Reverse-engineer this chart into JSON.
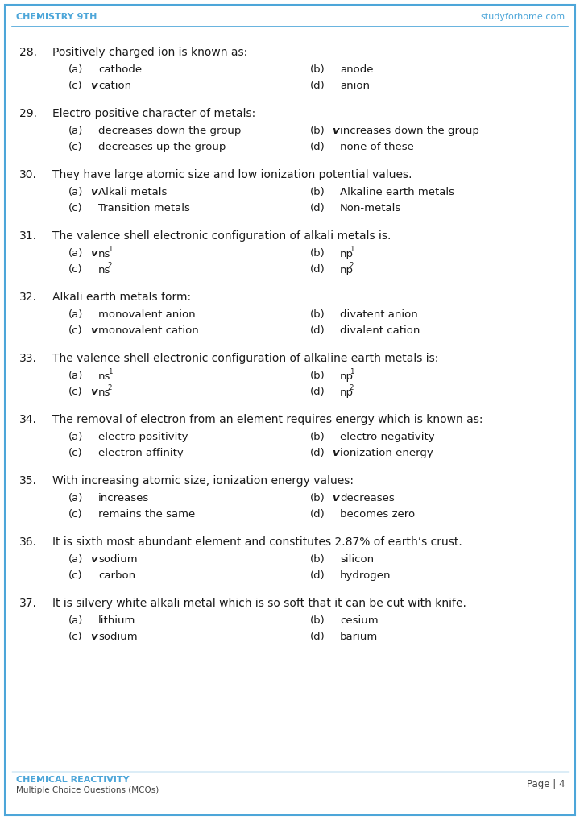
{
  "header_left": "CHEMISTRY 9TH",
  "header_right": "studyforhome.com",
  "header_color": "#4da6d9",
  "footer_left_line1": "CHEMICAL REACTIVITY",
  "footer_left_line2": "Multiple Choice Questions (MCQs)",
  "footer_right": "Page | 4",
  "footer_color": "#4da6d9",
  "bg_color": "#ffffff",
  "border_color": "#4da6d9",
  "watermark_text": "studyforhome.com",
  "questions": [
    {
      "num": "28.",
      "question": "Positively charged ion is known as:",
      "options": [
        {
          "label": "(a)",
          "check": false,
          "text": "cathode",
          "sup": null,
          "col": 0
        },
        {
          "label": "(b)",
          "check": false,
          "text": "anode",
          "sup": null,
          "col": 1
        },
        {
          "label": "(c)",
          "check": true,
          "text": "cation",
          "sup": null,
          "col": 0
        },
        {
          "label": "(d)",
          "check": false,
          "text": "anion",
          "sup": null,
          "col": 1
        }
      ]
    },
    {
      "num": "29.",
      "question": "Electro positive character of metals:",
      "options": [
        {
          "label": "(a)",
          "check": false,
          "text": "decreases down the group",
          "sup": null,
          "col": 0
        },
        {
          "label": "(b)",
          "check": true,
          "text": "increases down the group",
          "sup": null,
          "col": 1
        },
        {
          "label": "(c)",
          "check": false,
          "text": "decreases up the group",
          "sup": null,
          "col": 0
        },
        {
          "label": "(d)",
          "check": false,
          "text": "none of these",
          "sup": null,
          "col": 1
        }
      ]
    },
    {
      "num": "30.",
      "question": "They have large atomic size and low ionization potential values.",
      "options": [
        {
          "label": "(a)",
          "check": true,
          "text": "Alkali metals",
          "sup": null,
          "col": 0
        },
        {
          "label": "(b)",
          "check": false,
          "text": "Alkaline earth metals",
          "sup": null,
          "col": 1
        },
        {
          "label": "(c)",
          "check": false,
          "text": "Transition metals",
          "sup": null,
          "col": 0
        },
        {
          "label": "(d)",
          "check": false,
          "text": "Non-metals",
          "sup": null,
          "col": 1
        }
      ]
    },
    {
      "num": "31.",
      "question": "The valence shell electronic configuration of alkali metals is.",
      "options": [
        {
          "label": "(a)",
          "check": true,
          "text": "ns",
          "sup": "1",
          "col": 0
        },
        {
          "label": "(b)",
          "check": false,
          "text": "np",
          "sup": "1",
          "col": 1
        },
        {
          "label": "(c)",
          "check": false,
          "text": "ns",
          "sup": "2",
          "col": 0
        },
        {
          "label": "(d)",
          "check": false,
          "text": "np",
          "sup": "2",
          "col": 1
        }
      ]
    },
    {
      "num": "32.",
      "question": "Alkali earth metals form:",
      "options": [
        {
          "label": "(a)",
          "check": false,
          "text": "monovalent anion",
          "sup": null,
          "col": 0
        },
        {
          "label": "(b)",
          "check": false,
          "text": "divatent anion",
          "sup": null,
          "col": 1
        },
        {
          "label": "(c)",
          "check": true,
          "text": "monovalent cation",
          "sup": null,
          "col": 0
        },
        {
          "label": "(d)",
          "check": false,
          "text": "divalent cation",
          "sup": null,
          "col": 1
        }
      ]
    },
    {
      "num": "33.",
      "question": "The valence shell electronic configuration of alkaline earth metals is:",
      "options": [
        {
          "label": "(a)",
          "check": false,
          "text": "ns",
          "sup": "1",
          "col": 0
        },
        {
          "label": "(b)",
          "check": false,
          "text": "np",
          "sup": "1",
          "col": 1
        },
        {
          "label": "(c)",
          "check": true,
          "text": "ns",
          "sup": "2",
          "col": 0
        },
        {
          "label": "(d)",
          "check": false,
          "text": "np",
          "sup": "2",
          "col": 1
        }
      ]
    },
    {
      "num": "34.",
      "question": "The removal of electron from an element requires energy which is known as:",
      "options": [
        {
          "label": "(a)",
          "check": false,
          "text": "electro positivity",
          "sup": null,
          "col": 0
        },
        {
          "label": "(b)",
          "check": false,
          "text": "electro negativity",
          "sup": null,
          "col": 1
        },
        {
          "label": "(c)",
          "check": false,
          "text": "electron affinity",
          "sup": null,
          "col": 0
        },
        {
          "label": "(d)",
          "check": true,
          "text": "ionization energy",
          "sup": null,
          "col": 1
        }
      ]
    },
    {
      "num": "35.",
      "question": "With increasing atomic size, ionization energy values:",
      "options": [
        {
          "label": "(a)",
          "check": false,
          "text": "increases",
          "sup": null,
          "col": 0
        },
        {
          "label": "(b)",
          "check": true,
          "text": "decreases",
          "sup": null,
          "col": 1
        },
        {
          "label": "(c)",
          "check": false,
          "text": "remains the same",
          "sup": null,
          "col": 0
        },
        {
          "label": "(d)",
          "check": false,
          "text": "becomes zero",
          "sup": null,
          "col": 1
        }
      ]
    },
    {
      "num": "36.",
      "question": "It is sixth most abundant element and constitutes 2.87% of earth’s crust.",
      "options": [
        {
          "label": "(a)",
          "check": true,
          "text": "sodium",
          "sup": null,
          "col": 0
        },
        {
          "label": "(b)",
          "check": false,
          "text": "silicon",
          "sup": null,
          "col": 1
        },
        {
          "label": "(c)",
          "check": false,
          "text": "carbon",
          "sup": null,
          "col": 0
        },
        {
          "label": "(d)",
          "check": false,
          "text": "hydrogen",
          "sup": null,
          "col": 1
        }
      ]
    },
    {
      "num": "37.",
      "question": "It is silvery white alkali metal which is so soft that it can be cut with knife.",
      "options": [
        {
          "label": "(a)",
          "check": false,
          "text": "lithium",
          "sup": null,
          "col": 0
        },
        {
          "label": "(b)",
          "check": false,
          "text": "cesium",
          "sup": null,
          "col": 1
        },
        {
          "label": "(c)",
          "check": true,
          "text": "sodium",
          "sup": null,
          "col": 0
        },
        {
          "label": "(d)",
          "check": false,
          "text": "barium",
          "sup": null,
          "col": 1
        }
      ]
    }
  ]
}
